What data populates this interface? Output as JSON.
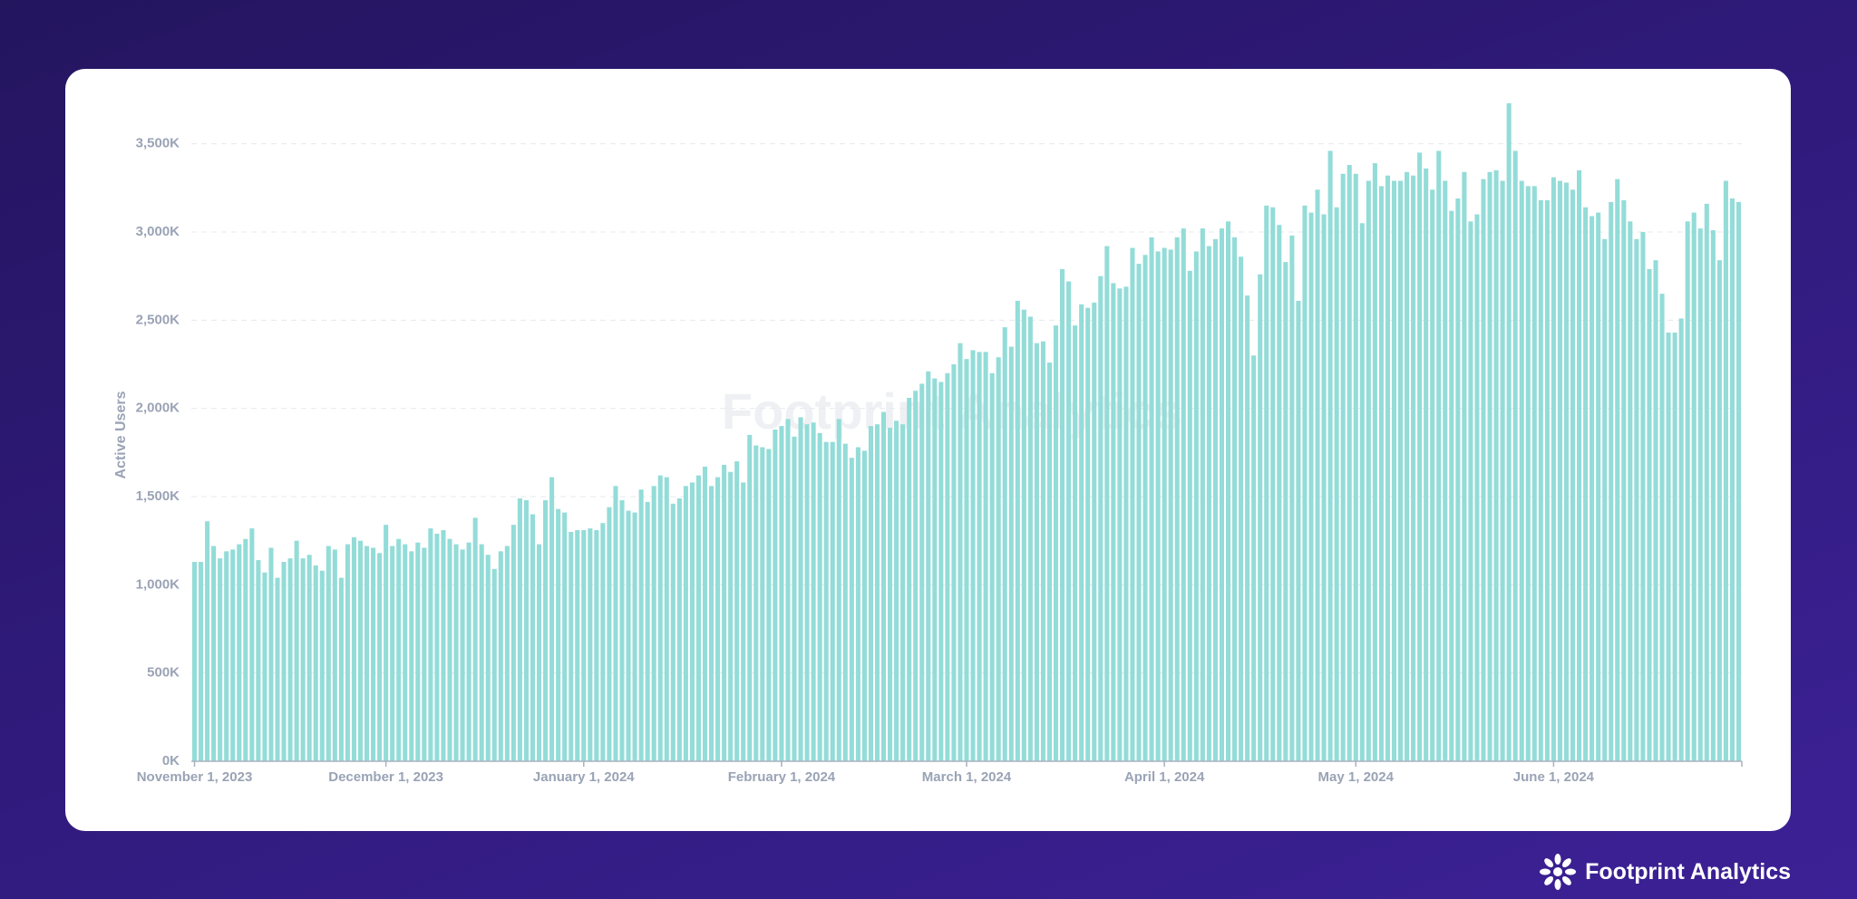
{
  "chart_data": {
    "type": "bar",
    "y_label": "Active Users",
    "watermark": "Footprint Analytics",
    "brand": "Footprint Analytics",
    "color": "#93dcd8",
    "grid": true,
    "ylim": [
      0,
      3750
    ],
    "yticks": [
      {
        "value": 0,
        "label": "0K"
      },
      {
        "value": 500,
        "label": "500K"
      },
      {
        "value": 1000,
        "label": "1,000K"
      },
      {
        "value": 1500,
        "label": "1,500K"
      },
      {
        "value": 2000,
        "label": "2,000K"
      },
      {
        "value": 2500,
        "label": "2,500K"
      },
      {
        "value": 3000,
        "label": "3,000K"
      },
      {
        "value": 3500,
        "label": "3,500K"
      }
    ],
    "categories": [
      "November 1, 2023",
      null,
      null,
      null,
      null,
      null,
      null,
      null,
      null,
      null,
      null,
      null,
      null,
      null,
      null,
      null,
      null,
      null,
      null,
      null,
      null,
      null,
      null,
      null,
      null,
      null,
      null,
      null,
      null,
      null,
      "December 1, 2023",
      null,
      null,
      null,
      null,
      null,
      null,
      null,
      null,
      null,
      null,
      null,
      null,
      null,
      null,
      null,
      null,
      null,
      null,
      null,
      null,
      null,
      null,
      null,
      null,
      null,
      null,
      null,
      null,
      null,
      null,
      "January 1, 2024",
      null,
      null,
      null,
      null,
      null,
      null,
      null,
      null,
      null,
      null,
      null,
      null,
      null,
      null,
      null,
      null,
      null,
      null,
      null,
      null,
      null,
      null,
      null,
      null,
      null,
      null,
      null,
      null,
      null,
      null,
      "February 1, 2024",
      null,
      null,
      null,
      null,
      null,
      null,
      null,
      null,
      null,
      null,
      null,
      null,
      null,
      null,
      null,
      null,
      null,
      null,
      null,
      null,
      null,
      null,
      null,
      null,
      null,
      null,
      null,
      null,
      "March 1, 2024",
      null,
      null,
      null,
      null,
      null,
      null,
      null,
      null,
      null,
      null,
      null,
      null,
      null,
      null,
      null,
      null,
      null,
      null,
      null,
      null,
      null,
      null,
      null,
      null,
      null,
      null,
      null,
      null,
      null,
      null,
      "April 1, 2024",
      null,
      null,
      null,
      null,
      null,
      null,
      null,
      null,
      null,
      null,
      null,
      null,
      null,
      null,
      null,
      null,
      null,
      null,
      null,
      null,
      null,
      null,
      null,
      null,
      null,
      null,
      null,
      null,
      null,
      "May 1, 2024",
      null,
      null,
      null,
      null,
      null,
      null,
      null,
      null,
      null,
      null,
      null,
      null,
      null,
      null,
      null,
      null,
      null,
      null,
      null,
      null,
      null,
      null,
      null,
      null,
      null,
      null,
      null,
      null,
      null,
      null,
      "June 1, 2024",
      null,
      null,
      null,
      null,
      null,
      null,
      null,
      null,
      null,
      null,
      null,
      null,
      null,
      null,
      null,
      null,
      null,
      null,
      null,
      null,
      null,
      null,
      null,
      null,
      null,
      null,
      null,
      null,
      null
    ],
    "values": [
      1130,
      1130,
      1360,
      1220,
      1150,
      1190,
      1200,
      1230,
      1260,
      1320,
      1140,
      1070,
      1210,
      1040,
      1130,
      1150,
      1250,
      1150,
      1170,
      1110,
      1080,
      1220,
      1200,
      1040,
      1230,
      1270,
      1250,
      1220,
      1210,
      1180,
      1340,
      1220,
      1260,
      1230,
      1190,
      1240,
      1210,
      1320,
      1290,
      1310,
      1260,
      1230,
      1200,
      1240,
      1380,
      1230,
      1170,
      1090,
      1190,
      1220,
      1340,
      1490,
      1480,
      1400,
      1230,
      1480,
      1610,
      1430,
      1410,
      1300,
      1310,
      1310,
      1320,
      1310,
      1350,
      1440,
      1560,
      1480,
      1420,
      1410,
      1540,
      1470,
      1560,
      1620,
      1610,
      1460,
      1490,
      1560,
      1580,
      1620,
      1670,
      1560,
      1610,
      1680,
      1640,
      1700,
      1580,
      1850,
      1790,
      1780,
      1770,
      1880,
      1900,
      1940,
      1840,
      1950,
      1910,
      1920,
      1860,
      1810,
      1810,
      1940,
      1800,
      1720,
      1780,
      1760,
      1900,
      1910,
      1980,
      1890,
      1930,
      1910,
      2060,
      2100,
      2140,
      2210,
      2170,
      2150,
      2200,
      2250,
      2370,
      2280,
      2330,
      2320,
      2320,
      2200,
      2290,
      2460,
      2350,
      2610,
      2560,
      2520,
      2370,
      2380,
      2260,
      2470,
      2790,
      2720,
      2470,
      2590,
      2570,
      2600,
      2750,
      2920,
      2710,
      2680,
      2690,
      2910,
      2820,
      2870,
      2970,
      2890,
      2910,
      2900,
      2970,
      3020,
      2780,
      2890,
      3020,
      2920,
      2960,
      3020,
      3060,
      2970,
      2860,
      2640,
      2300,
      2760,
      3150,
      3140,
      3040,
      2830,
      2980,
      2610,
      3150,
      3110,
      3240,
      3100,
      3460,
      3140,
      3330,
      3380,
      3330,
      3050,
      3290,
      3390,
      3260,
      3320,
      3290,
      3290,
      3340,
      3320,
      3450,
      3360,
      3240,
      3460,
      3290,
      3120,
      3190,
      3340,
      3060,
      3100,
      3300,
      3340,
      3350,
      3290,
      3730,
      3460,
      3290,
      3260,
      3260,
      3180,
      3180,
      3310,
      3290,
      3280,
      3240,
      3350,
      3140,
      3090,
      3110,
      2960,
      3170,
      3300,
      3180,
      3060,
      2960,
      3000,
      2790,
      2840,
      2650,
      2430,
      2430,
      2510,
      3060,
      3110,
      3020,
      3160,
      3010,
      2840,
      3290,
      3190,
      3170
    ]
  }
}
